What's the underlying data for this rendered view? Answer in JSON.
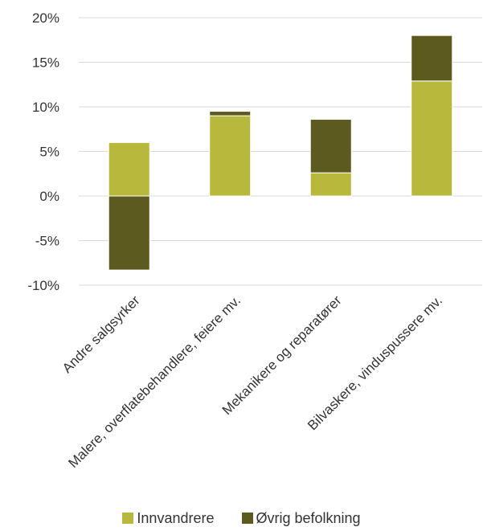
{
  "chart_data": {
    "type": "bar",
    "stacked": true,
    "categories": [
      "Andre salgsyrker",
      "Malere, overflatebehandlere, feiere mv.",
      "Mekanikere og reparatører",
      "Bilvaskere, vinduspussere mv."
    ],
    "series": [
      {
        "name": "Innvandrere",
        "color": "#b8b83c",
        "values": [
          6.0,
          9.0,
          2.6,
          12.9
        ]
      },
      {
        "name": "Øvrig befolkning",
        "color": "#5c5a1e",
        "values": [
          -8.3,
          0.5,
          6.0,
          5.1
        ]
      }
    ],
    "y_ticks": [
      20,
      15,
      10,
      5,
      0,
      -5,
      -10
    ],
    "y_tick_labels": [
      "20%",
      "15%",
      "10%",
      "5%",
      "0%",
      "-5%",
      "-10%"
    ],
    "ylim": [
      -10,
      20
    ],
    "grid": true,
    "legend_position": "bottom"
  }
}
